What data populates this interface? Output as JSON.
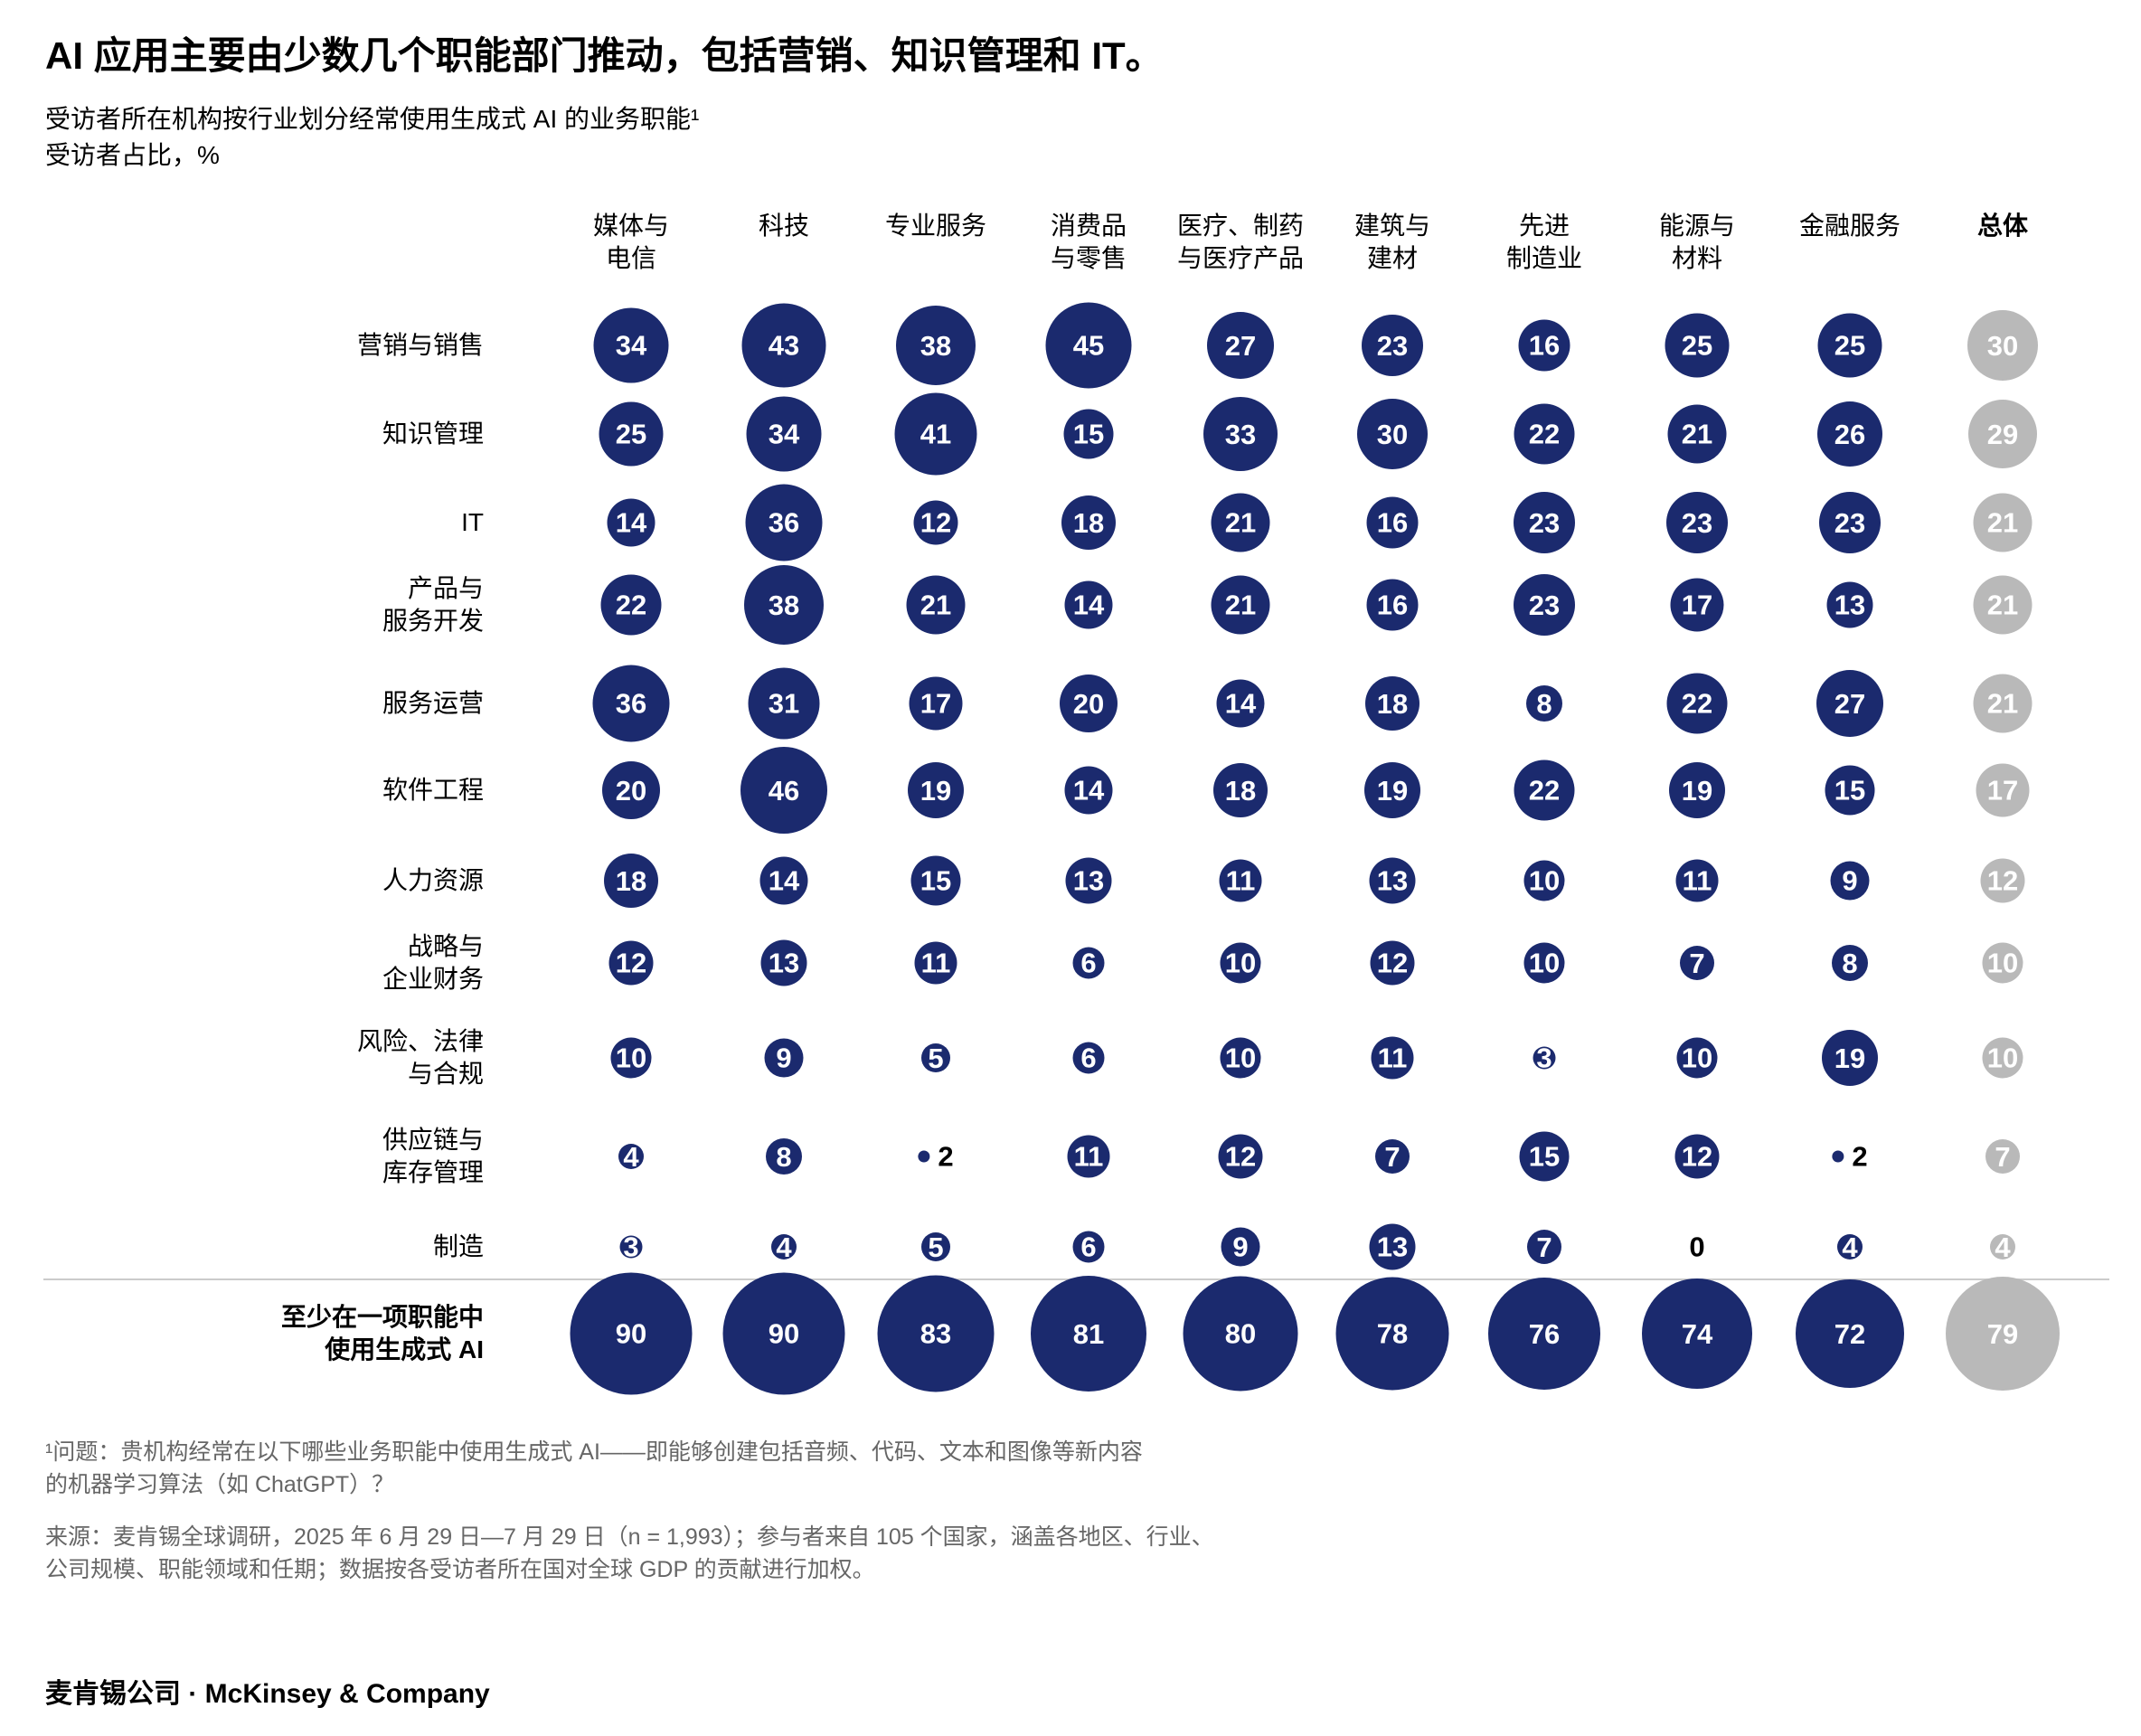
{
  "title": "AI 应用主要由少数几个职能部门推动，包括营销、知识管理和 IT。",
  "subtitle": [
    "受访者所在机构按行业划分经常使用生成式 AI 的业务职能¹",
    "受访者占比，%"
  ],
  "colors": {
    "bubble": "#1b2a6e",
    "overall_bubble": "#b9b9b9",
    "number_text": "#ffffff",
    "special_text": "#000000",
    "divider": "#cbcbcb",
    "footnote_text": "#666666"
  },
  "chart_data": {
    "type": "heatmap",
    "encoding": "bubble-size, value = % of respondents",
    "unit": "%",
    "columns": [
      "媒体与\n电信",
      "科技",
      "专业服务",
      "消费品\n与零售",
      "医疗、制药\n与医疗产品",
      "建筑与\n建材",
      "先进\n制造业",
      "能源与\n材料",
      "金融服务",
      "总体"
    ],
    "overall_column_index": 9,
    "rows": [
      {
        "label": "营销与销售",
        "values": [
          34,
          43,
          38,
          45,
          27,
          23,
          16,
          25,
          25,
          30
        ]
      },
      {
        "label": "知识管理",
        "values": [
          25,
          34,
          41,
          15,
          33,
          30,
          22,
          21,
          26,
          29
        ]
      },
      {
        "label": "IT",
        "values": [
          14,
          36,
          12,
          18,
          21,
          16,
          23,
          23,
          23,
          21
        ]
      },
      {
        "label": "产品与\n服务开发",
        "values": [
          22,
          38,
          21,
          14,
          21,
          16,
          23,
          17,
          13,
          21
        ]
      },
      {
        "label": "服务运营",
        "values": [
          36,
          31,
          17,
          20,
          14,
          18,
          8,
          22,
          27,
          21
        ]
      },
      {
        "label": "软件工程",
        "values": [
          20,
          46,
          19,
          14,
          18,
          19,
          22,
          19,
          15,
          17
        ]
      },
      {
        "label": "人力资源",
        "values": [
          18,
          14,
          15,
          13,
          11,
          13,
          10,
          11,
          9,
          12
        ]
      },
      {
        "label": "战略与\n企业财务",
        "values": [
          12,
          13,
          11,
          6,
          10,
          12,
          10,
          7,
          8,
          10
        ]
      },
      {
        "label": "风险、法律\n与合规",
        "values": [
          10,
          9,
          5,
          6,
          10,
          11,
          3,
          10,
          19,
          10
        ]
      },
      {
        "label": "供应链与\n库存管理",
        "values": [
          4,
          8,
          2,
          11,
          12,
          7,
          15,
          12,
          2,
          7
        ]
      },
      {
        "label": "制造",
        "values": [
          3,
          4,
          5,
          6,
          9,
          13,
          7,
          0,
          4,
          4
        ]
      }
    ],
    "total_row": {
      "label": "至少在一项职能中\n使用生成式 AI",
      "values": [
        90,
        90,
        83,
        81,
        80,
        78,
        76,
        74,
        72,
        79
      ]
    }
  },
  "footnote": "¹问题：贵机构经常在以下哪些业务职能中使用生成式 AI——即能够创建包括音频、代码、文本和图像等新内容的机器学习算法（如 ChatGPT）？",
  "source": "来源：麦肯锡全球调研，2025 年 6 月 29 日—7 月 29 日（n = 1,993）；参与者来自 105 个国家，涵盖各地区、行业、公司规模、职能领域和任期；数据按各受访者所在国对全球 GDP 的贡献进行加权。",
  "footer": "麦肯锡公司 · McKinsey & Company"
}
